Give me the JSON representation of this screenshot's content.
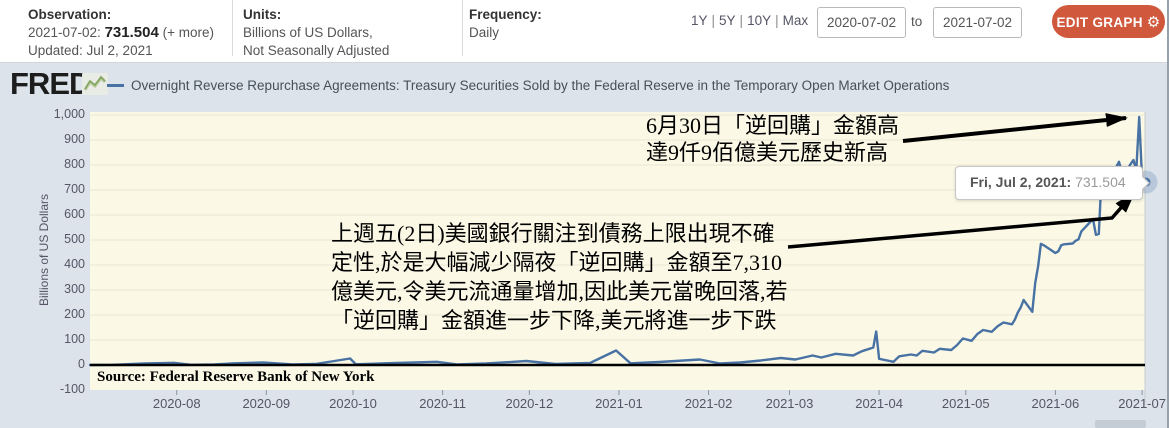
{
  "header": {
    "observation": {
      "label": "Observation:",
      "date": "2021-07-02:",
      "value": "731.504",
      "more": "(+ more)",
      "updated": "Updated: Jul 2, 2021"
    },
    "units": {
      "label": "Units:",
      "line1": "Billions of US Dollars,",
      "line2": "Not Seasonally Adjusted"
    },
    "frequency": {
      "label": "Frequency:",
      "value": "Daily"
    },
    "range_options": [
      "1Y",
      "5Y",
      "10Y",
      "Max"
    ],
    "range_separator": "|",
    "date_from": "2020-07-02",
    "to_label": "to",
    "date_to": "2021-07-02",
    "edit_graph_label": "EDIT GRAPH",
    "edit_graph_color": "#d0583c"
  },
  "brand": {
    "logo": "FRED",
    "registered": "®",
    "chart_icon": "zigzag-line-chart-icon"
  },
  "legend": {
    "series_label": "Overnight Reverse Repurchase Agreements: Treasury Securities Sold by the Federal Reserve in the Temporary Open Market Operations",
    "series_color": "#4872a3"
  },
  "tooltip": {
    "date": "Fri, Jul 2, 2021:",
    "value": "731.504"
  },
  "annotations": {
    "peak_note": [
      "6月30日「逆回購」金額高",
      "達9仟9佰億美元歷史新高"
    ],
    "drop_note": [
      "上週五(2日)美國銀行關注到債務上限出現不確",
      "定性,於是大幅減少隔夜「逆回購」金額至7,310",
      "億美元,令美元流通量增加,因此美元當晚回落,若",
      "「逆回購」金額進一步下降,美元將進一步下跌"
    ]
  },
  "chart_data": {
    "type": "line",
    "title": "Overnight Reverse Repurchase Agreements: Treasury Securities Sold by the Federal Reserve in the Temporary Open Market Operations",
    "ylabel": "Billions of US Dollars",
    "xlabel": "",
    "ylim": [
      -100,
      1012
    ],
    "x_domain": [
      "2020-07-02",
      "2021-07-02"
    ],
    "grid": "horizontal",
    "legend_position": "top",
    "plot_bg": "#fbf9e6",
    "zero_line": true,
    "source": "Source: Federal Reserve Bank of New York",
    "yticks": [
      [
        -100,
        "-100"
      ],
      [
        0,
        "0"
      ],
      [
        100,
        "100"
      ],
      [
        200,
        "200"
      ],
      [
        300,
        "300"
      ],
      [
        400,
        "400"
      ],
      [
        500,
        "500"
      ],
      [
        600,
        "600"
      ],
      [
        700,
        "700"
      ],
      [
        800,
        "800"
      ],
      [
        900,
        "900"
      ],
      [
        1000,
        "1,000"
      ]
    ],
    "xticks": [
      [
        "2020-08-01",
        "2020-08"
      ],
      [
        "2020-09-01",
        "2020-09"
      ],
      [
        "2020-10-01",
        "2020-10"
      ],
      [
        "2020-11-01",
        "2020-11"
      ],
      [
        "2020-12-01",
        "2020-12"
      ],
      [
        "2021-01-01",
        "2021-01"
      ],
      [
        "2021-02-01",
        "2021-02"
      ],
      [
        "2021-03-01",
        "2021-03"
      ],
      [
        "2021-04-01",
        "2021-04"
      ],
      [
        "2021-05-01",
        "2021-05"
      ],
      [
        "2021-06-01",
        "2021-06"
      ],
      [
        "2021-07-01",
        "2021-07"
      ]
    ],
    "series": [
      {
        "name": "Overnight Reverse Repurchase Agreements",
        "color": "#4872a3",
        "points": [
          [
            "2020-07-02",
            0
          ],
          [
            "2020-07-10",
            1
          ],
          [
            "2020-07-21",
            6
          ],
          [
            "2020-07-31",
            9
          ],
          [
            "2020-08-06",
            1
          ],
          [
            "2020-08-14",
            2
          ],
          [
            "2020-08-21",
            7
          ],
          [
            "2020-08-31",
            10
          ],
          [
            "2020-09-10",
            2
          ],
          [
            "2020-09-18",
            4
          ],
          [
            "2020-09-30",
            26
          ],
          [
            "2020-10-02",
            3
          ],
          [
            "2020-10-16",
            8
          ],
          [
            "2020-10-30",
            13
          ],
          [
            "2020-11-06",
            2
          ],
          [
            "2020-11-16",
            6
          ],
          [
            "2020-11-30",
            16
          ],
          [
            "2020-12-10",
            4
          ],
          [
            "2020-12-22",
            8
          ],
          [
            "2020-12-31",
            58
          ],
          [
            "2021-01-05",
            7
          ],
          [
            "2021-01-15",
            12
          ],
          [
            "2021-01-29",
            22
          ],
          [
            "2021-02-05",
            6
          ],
          [
            "2021-02-12",
            10
          ],
          [
            "2021-02-19",
            18
          ],
          [
            "2021-02-26",
            28
          ],
          [
            "2021-03-03",
            22
          ],
          [
            "2021-03-09",
            38
          ],
          [
            "2021-03-12",
            30
          ],
          [
            "2021-03-17",
            45
          ],
          [
            "2021-03-23",
            38
          ],
          [
            "2021-03-26",
            55
          ],
          [
            "2021-03-30",
            70
          ],
          [
            "2021-03-31",
            134
          ],
          [
            "2021-04-01",
            25
          ],
          [
            "2021-04-06",
            13
          ],
          [
            "2021-04-08",
            35
          ],
          [
            "2021-04-12",
            42
          ],
          [
            "2021-04-14",
            38
          ],
          [
            "2021-04-16",
            57
          ],
          [
            "2021-04-20",
            50
          ],
          [
            "2021-04-22",
            65
          ],
          [
            "2021-04-26",
            60
          ],
          [
            "2021-04-28",
            80
          ],
          [
            "2021-04-30",
            106
          ],
          [
            "2021-05-03",
            97
          ],
          [
            "2021-05-05",
            124
          ],
          [
            "2021-05-07",
            140
          ],
          [
            "2021-05-10",
            133
          ],
          [
            "2021-05-12",
            155
          ],
          [
            "2021-05-14",
            170
          ],
          [
            "2021-05-17",
            163
          ],
          [
            "2021-05-18",
            182
          ],
          [
            "2021-05-19",
            210
          ],
          [
            "2021-05-20",
            230
          ],
          [
            "2021-05-21",
            260
          ],
          [
            "2021-05-24",
            213
          ],
          [
            "2021-05-25",
            328
          ],
          [
            "2021-05-26",
            395
          ],
          [
            "2021-05-27",
            485
          ],
          [
            "2021-05-28",
            479
          ],
          [
            "2021-06-01",
            448
          ],
          [
            "2021-06-02",
            455
          ],
          [
            "2021-06-03",
            479
          ],
          [
            "2021-06-04",
            483
          ],
          [
            "2021-06-07",
            486
          ],
          [
            "2021-06-08",
            497
          ],
          [
            "2021-06-09",
            503
          ],
          [
            "2021-06-10",
            535
          ],
          [
            "2021-06-11",
            547
          ],
          [
            "2021-06-14",
            584
          ],
          [
            "2021-06-15",
            521
          ],
          [
            "2021-06-16",
            524
          ],
          [
            "2021-06-17",
            756
          ],
          [
            "2021-06-18",
            747
          ],
          [
            "2021-06-21",
            765
          ],
          [
            "2021-06-22",
            791
          ],
          [
            "2021-06-23",
            813
          ],
          [
            "2021-06-24",
            770
          ],
          [
            "2021-06-25",
            769
          ],
          [
            "2021-06-28",
            820
          ],
          [
            "2021-06-29",
            780
          ],
          [
            "2021-06-30",
            992
          ],
          [
            "2021-07-01",
            742
          ],
          [
            "2021-07-02",
            731.504
          ]
        ]
      }
    ],
    "end_marker": {
      "date": "2021-07-02",
      "value": 731.504
    }
  }
}
